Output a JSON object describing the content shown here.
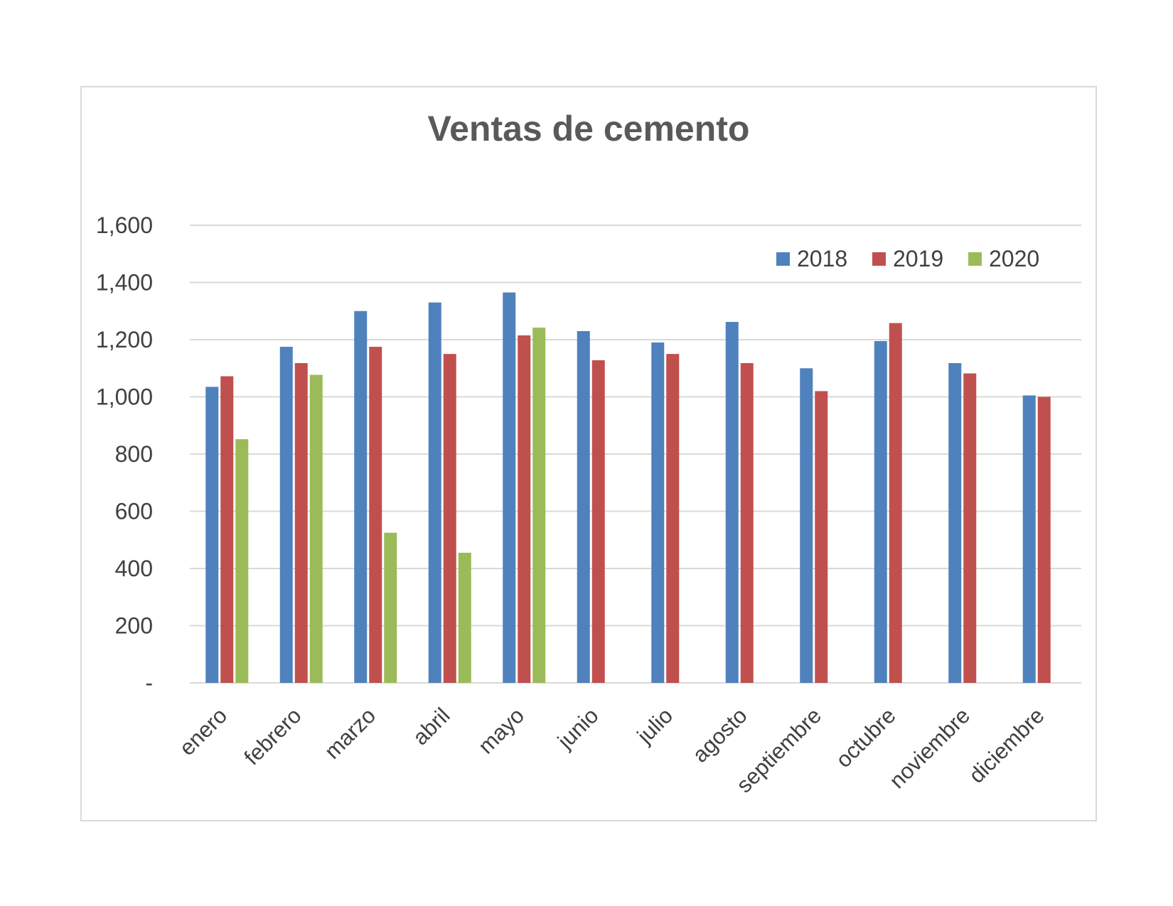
{
  "chart_data": {
    "type": "bar",
    "title": "Ventas de cemento",
    "xlabel": "",
    "ylabel": "",
    "ylim": [
      0,
      1600
    ],
    "yticks": [
      0,
      200,
      400,
      600,
      800,
      1000,
      1200,
      1400,
      1600
    ],
    "ytick_labels": [
      "-",
      "200",
      "400",
      "600",
      "800",
      "1,000",
      "1,200",
      "1,400",
      "1,600"
    ],
    "grid": true,
    "legend_position": "top-right",
    "categories": [
      "enero",
      "febrero",
      "marzo",
      "abril",
      "mayo",
      "junio",
      "julio",
      "agosto",
      "septiembre",
      "octubre",
      "noviembre",
      "diciembre"
    ],
    "series": [
      {
        "name": "2018",
        "color": "#4f81bd",
        "values": [
          1035,
          1175,
          1300,
          1330,
          1365,
          1230,
          1190,
          1262,
          1100,
          1195,
          1118,
          1005
        ]
      },
      {
        "name": "2019",
        "color": "#c0504d",
        "values": [
          1072,
          1118,
          1175,
          1150,
          1215,
          1128,
          1150,
          1118,
          1020,
          1258,
          1082,
          1000
        ]
      },
      {
        "name": "2020",
        "color": "#9bbb59",
        "values": [
          852,
          1077,
          525,
          455,
          1242,
          null,
          null,
          null,
          null,
          null,
          null,
          null
        ]
      }
    ]
  }
}
